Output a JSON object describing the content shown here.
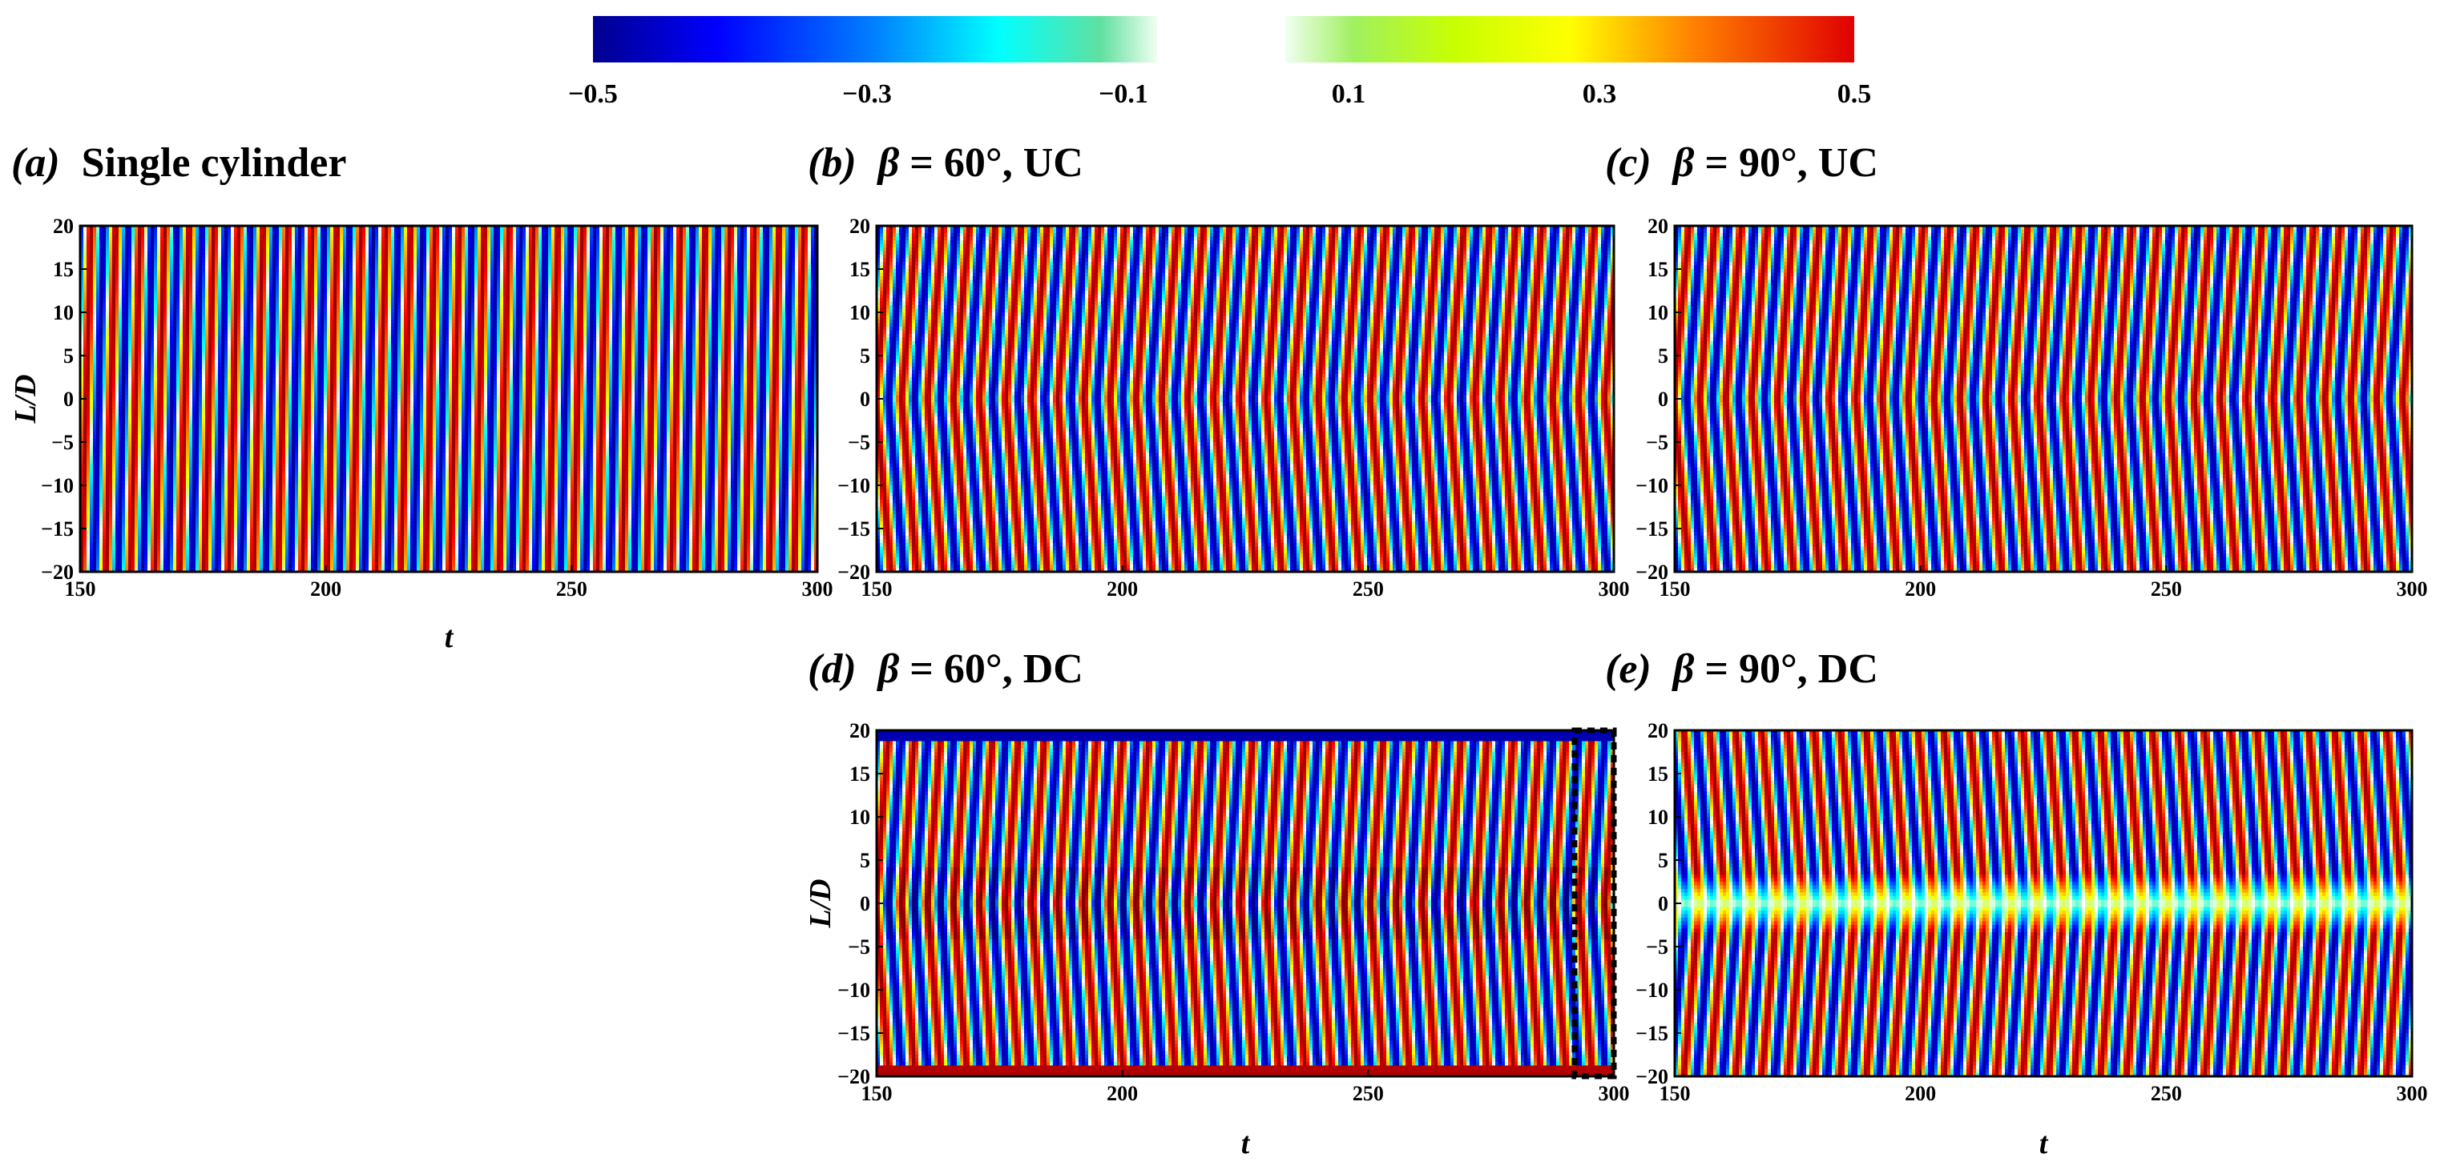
{
  "figure": {
    "colorbar": {
      "min": -0.5,
      "max": 0.5,
      "blank_range": [
        -0.05,
        0.05
      ],
      "left_ticks": [
        "−0.5",
        "−0.3",
        "−0.1"
      ],
      "left_tick_values": [
        -0.5,
        -0.3,
        -0.1
      ],
      "right_ticks": [
        "0.1",
        "0.3",
        "0.5"
      ],
      "right_tick_values": [
        0.1,
        0.3,
        0.5
      ],
      "colormap": "jet"
    },
    "panels": {
      "a": {
        "label": "(a)",
        "title": "Single cylinder",
        "xlabel": "t",
        "ylabel": "L/D"
      },
      "b": {
        "label": "(b)",
        "beta": "β",
        "title": " = 60°, UC",
        "xlabel": "",
        "ylabel": ""
      },
      "c": {
        "label": "(c)",
        "beta": "β",
        "title": " = 90°, UC",
        "xlabel": "",
        "ylabel": ""
      },
      "d": {
        "label": "(d)",
        "beta": "β",
        "title": " = 60°, DC",
        "xlabel": "t",
        "ylabel": "L/D"
      },
      "e": {
        "label": "(e)",
        "beta": "β",
        "title": " = 90°, DC",
        "xlabel": "t",
        "ylabel": ""
      }
    }
  },
  "chart_data": [
    {
      "id": "a",
      "type": "heatmap",
      "title": "(a) Single cylinder",
      "xlabel": "t",
      "ylabel": "L/D",
      "xlim": [
        150,
        300
      ],
      "ylim": [
        -20,
        20
      ],
      "xticks": [
        150,
        200,
        250,
        300
      ],
      "yticks": [
        20,
        15,
        10,
        5,
        0,
        -5,
        -10,
        -15,
        -20
      ],
      "period": 5.0,
      "pattern": "uniform-oblique",
      "amplitude": 0.5,
      "description_values": {
        "oblique_shift_per_LD": 0.05
      }
    },
    {
      "id": "b",
      "type": "heatmap",
      "title": "(b) β = 60°, UC",
      "xlabel": "",
      "ylabel": "",
      "xlim": [
        150,
        300
      ],
      "ylim": [
        -20,
        20
      ],
      "xticks": [
        150,
        200,
        250,
        300
      ],
      "yticks": [
        20,
        15,
        10,
        5,
        0,
        -5,
        -10,
        -15,
        -20
      ],
      "period": 5.3,
      "pattern": "chevron",
      "amplitude": 0.5,
      "description_values": {
        "chevron_shift_per_LD": 0.16
      }
    },
    {
      "id": "c",
      "type": "heatmap",
      "title": "(c) β = 90°, UC",
      "xlabel": "",
      "ylabel": "",
      "xlim": [
        150,
        300
      ],
      "ylim": [
        -20,
        20
      ],
      "xticks": [
        150,
        200,
        250,
        300
      ],
      "yticks": [
        20,
        15,
        10,
        5,
        0,
        -5,
        -10,
        -15,
        -20
      ],
      "period": 5.3,
      "pattern": "chevron",
      "amplitude": 0.5,
      "description_values": {
        "chevron_shift_per_LD": 0.16
      }
    },
    {
      "id": "d",
      "type": "heatmap",
      "title": "(d) β = 60°, DC",
      "xlabel": "t",
      "ylabel": "L/D",
      "xlim": [
        150,
        300
      ],
      "ylim": [
        -20,
        20
      ],
      "xticks": [
        150,
        200,
        250,
        300
      ],
      "yticks": [
        20,
        15,
        10,
        5,
        0,
        -5,
        -10,
        -15,
        -20
      ],
      "period": 5.3,
      "pattern": "chevron-end-cells",
      "amplitude": 0.5,
      "description_values": {
        "chevron_shift_per_LD": 0.14
      },
      "annotation": {
        "type": "dashed-box",
        "x_range": [
          292,
          300
        ],
        "y_range": [
          -20,
          20
        ]
      }
    },
    {
      "id": "e",
      "type": "heatmap",
      "title": "(e) β = 90°, DC",
      "xlabel": "t",
      "ylabel": "",
      "xlim": [
        150,
        300
      ],
      "ylim": [
        -20,
        20
      ],
      "xticks": [
        150,
        200,
        250,
        300
      ],
      "yticks": [
        20,
        15,
        10,
        5,
        0,
        -5,
        -10,
        -15,
        -20
      ],
      "period": 5.3,
      "pattern": "inverted-chevron-low-center",
      "amplitude": 0.5,
      "description_values": {
        "chevron_shift_per_LD": 0.16
      }
    }
  ]
}
